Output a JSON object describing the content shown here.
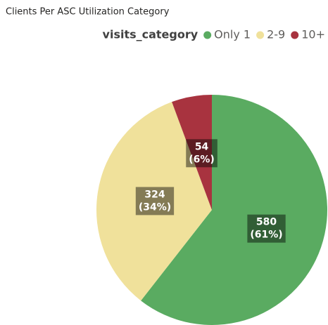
{
  "chart_data": {
    "type": "pie",
    "title": "Clients Per ASC Utilization Category",
    "legend_title": "visits_category",
    "categories": [
      "Only 1",
      "2-9",
      "10+"
    ],
    "values": [
      580,
      324,
      54
    ],
    "value_labels": [
      [
        "580",
        "(61%)"
      ],
      [
        "324",
        "(34%)"
      ],
      [
        "54",
        "(6%)"
      ]
    ],
    "colors": [
      "#5aab61",
      "#f0e19b",
      "#a8333f"
    ],
    "legend": "top-right"
  }
}
